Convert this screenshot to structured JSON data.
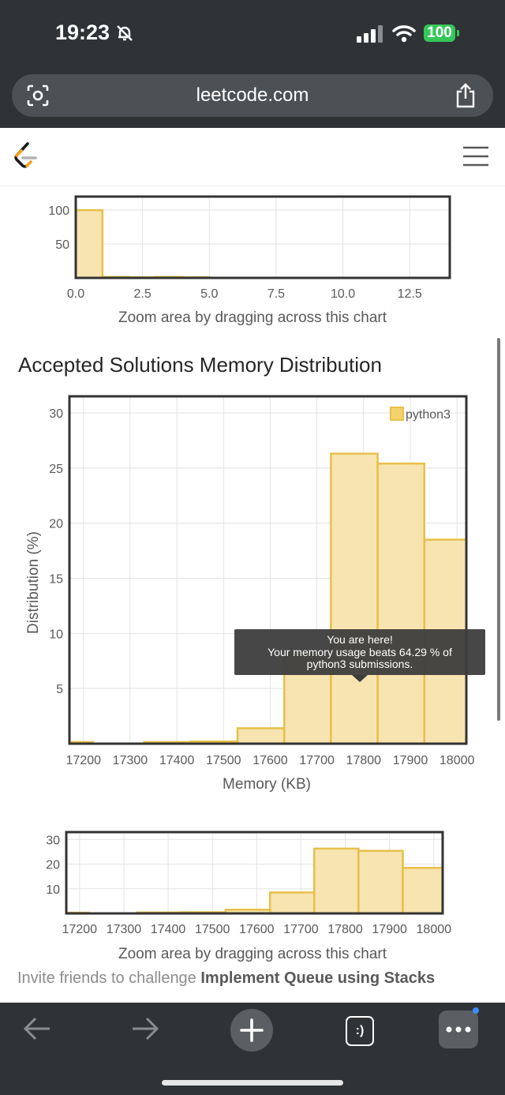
{
  "status_bar": {
    "time": "19:23",
    "battery": "100"
  },
  "browser": {
    "url": "leetcode.com"
  },
  "section": {
    "title": "Accepted Solutions Memory Distribution"
  },
  "invite": {
    "prefix": "Invite friends to challenge ",
    "problem": "Implement Queue using Stacks"
  },
  "tooltip": {
    "line1": "You are here!",
    "line2": "Your memory usage beats 64.29 % of",
    "line3": "python3 submissions."
  },
  "chart_data": [
    {
      "type": "bar",
      "role": "zoom-navigator (runtime)",
      "x_ticks": [
        "0.0",
        "2.5",
        "5.0",
        "7.5",
        "10.0",
        "12.5"
      ],
      "xlim": [
        0,
        14
      ],
      "y_ticks": [
        "100",
        "50"
      ],
      "ylim": [
        0,
        120
      ],
      "bins": [
        [
          0,
          1,
          100
        ],
        [
          1,
          2,
          1.5
        ],
        [
          2,
          3,
          1
        ],
        [
          3,
          4,
          1.5
        ],
        [
          4,
          5,
          1
        ]
      ],
      "hint": "Zoom area by dragging across this chart",
      "color": "#e7c04a"
    },
    {
      "type": "bar",
      "role": "main",
      "xlabel": "Memory (KB)",
      "ylabel": "Distribution (%)",
      "x_ticks": [
        "17200",
        "17300",
        "17400",
        "17500",
        "17600",
        "17700",
        "17800",
        "17900",
        "18000"
      ],
      "xlim": [
        17170,
        18020
      ],
      "y_ticks": [
        "30",
        "25",
        "20",
        "15",
        "10",
        "5"
      ],
      "ylim": [
        0,
        31.5
      ],
      "legend": "python3",
      "legend_position": "top-right",
      "bins": [
        [
          17170,
          17220,
          0.15
        ],
        [
          17220,
          17330,
          0
        ],
        [
          17330,
          17430,
          0.15
        ],
        [
          17430,
          17530,
          0.2
        ],
        [
          17530,
          17630,
          1.4
        ],
        [
          17630,
          17730,
          8.0
        ],
        [
          17730,
          17830,
          26.3
        ],
        [
          17830,
          17930,
          25.4
        ],
        [
          17930,
          18020,
          18.5
        ]
      ],
      "color": "#e7c04a"
    },
    {
      "type": "bar",
      "role": "zoom-navigator (memory)",
      "x_ticks": [
        "17200",
        "17300",
        "17400",
        "17500",
        "17600",
        "17700",
        "17800",
        "17900",
        "18000"
      ],
      "xlim": [
        17170,
        18020
      ],
      "y_ticks": [
        "30",
        "20",
        "10"
      ],
      "ylim": [
        0,
        33
      ],
      "bins": [
        [
          17170,
          17220,
          0.3
        ],
        [
          17220,
          17330,
          0
        ],
        [
          17330,
          17430,
          0.4
        ],
        [
          17430,
          17530,
          0.5
        ],
        [
          17530,
          17630,
          1.5
        ],
        [
          17630,
          17730,
          8.5
        ],
        [
          17730,
          17830,
          26.3
        ],
        [
          17830,
          17930,
          25.4
        ],
        [
          17930,
          18020,
          18.5
        ]
      ],
      "hint": "Zoom area by dragging across this chart",
      "color": "#e7c04a"
    }
  ]
}
